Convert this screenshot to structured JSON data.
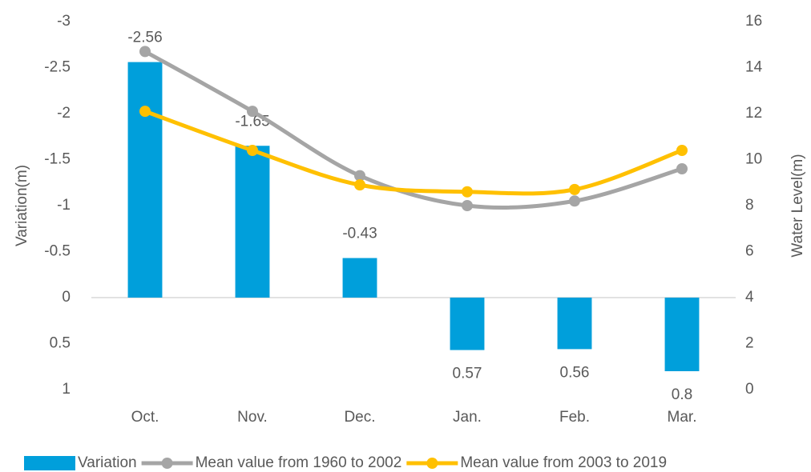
{
  "chart_data": {
    "type": "bar",
    "categories": [
      "Oct.",
      "Nov.",
      "Dec.",
      "Jan.",
      "Feb.",
      "Mar."
    ],
    "ylabel": "Variation(m)",
    "y2label": "Water Level(m)",
    "ylim": [
      -3,
      1
    ],
    "y_inverted": true,
    "yticks": [
      -3,
      -2.5,
      -2,
      -1.5,
      -1,
      -0.5,
      0,
      0.5,
      1
    ],
    "y2lim": [
      0,
      16
    ],
    "y2ticks": [
      0,
      2,
      4,
      6,
      8,
      10,
      12,
      14,
      16
    ],
    "grid": false,
    "legend": "bottom",
    "series": [
      {
        "name": "Variation",
        "type": "bar",
        "color": "#009fdb",
        "values": [
          -2.56,
          -1.65,
          -0.43,
          0.57,
          0.56,
          0.8
        ]
      },
      {
        "name": "Mean value from 1960 to 2002",
        "type": "line",
        "axis": "y2",
        "color": "#a5a5a5",
        "values": [
          14.7,
          12.1,
          9.3,
          8.0,
          8.2,
          9.6
        ]
      },
      {
        "name": "Mean value from 2003 to 2019",
        "type": "line",
        "axis": "y2",
        "color": "#ffc000",
        "values": [
          12.1,
          10.4,
          8.9,
          8.6,
          8.7,
          10.4
        ]
      }
    ]
  }
}
